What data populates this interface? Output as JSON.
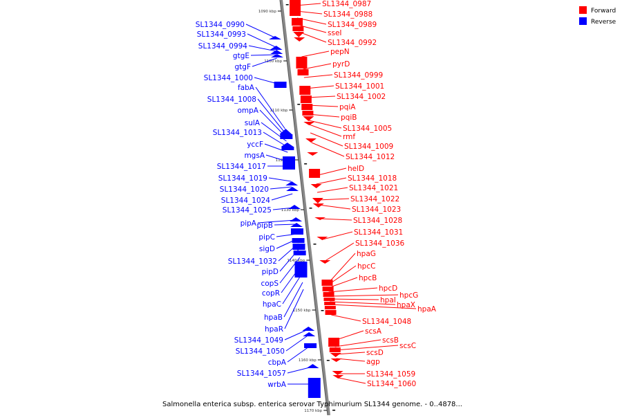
{
  "caption": "Salmonella enterica subsp. enterica serovar Typhimurium SL1344 genome. - 0..4878...",
  "legend": {
    "forward": {
      "label": "Forward",
      "color": "#ff0000"
    },
    "reverse": {
      "label": "Reverse",
      "color": "#0000ff"
    }
  },
  "backbone_color": "#888888",
  "kbp_marks": [
    "1090 kbp",
    "1100 kbp",
    "1110 kbp",
    "1120 kbp",
    "1130 kbp",
    "1140 kbp",
    "1150 kbp",
    "1160 kbp",
    "1170 kbp"
  ],
  "forward_genes": [
    "SL1344_0987",
    "SL1344_0988",
    "SL1344_0989",
    "sseI",
    "SL1344_0992",
    "pepN",
    "pyrD",
    "SL1344_0999",
    "SL1344_1001",
    "SL1344_1002",
    "pqiA",
    "pqiB",
    "SL1344_1005",
    "rmf",
    "SL1344_1009",
    "SL1344_1012",
    "helD",
    "SL1344_1018",
    "SL1344_1021",
    "SL1344_1022",
    "SL1344_1023",
    "SL1344_1028",
    "SL1344_1031",
    "SL1344_1036",
    "hpaG",
    "hpcC",
    "hpcB",
    "hpcD",
    "hpcG",
    "hpaI",
    "hpaX",
    "hpaA",
    "SL1344_1048",
    "scsA",
    "scsB",
    "scsC",
    "scsD",
    "agp",
    "SL1344_1059",
    "SL1344_1060"
  ],
  "reverse_genes": [
    "SL1344_0990",
    "SL1344_0993",
    "SL1344_0994",
    "gtgE",
    "gtgF",
    "SL1344_1000",
    "fabA",
    "SL1344_1008",
    "ompA",
    "sulA",
    "SL1344_1013",
    "yccF",
    "mgsA",
    "SL1344_1017",
    "SL1344_1019",
    "SL1344_1020",
    "SL1344_1024",
    "SL1344_1025",
    "pipA",
    "pipB",
    "pipC",
    "sigD",
    "SL1344_1032",
    "pipD",
    "copS",
    "copR",
    "hpaC",
    "hpaB",
    "hpaR",
    "SL1344_1049",
    "SL1344_1050",
    "cbpA",
    "SL1344_1057",
    "wrbA"
  ]
}
